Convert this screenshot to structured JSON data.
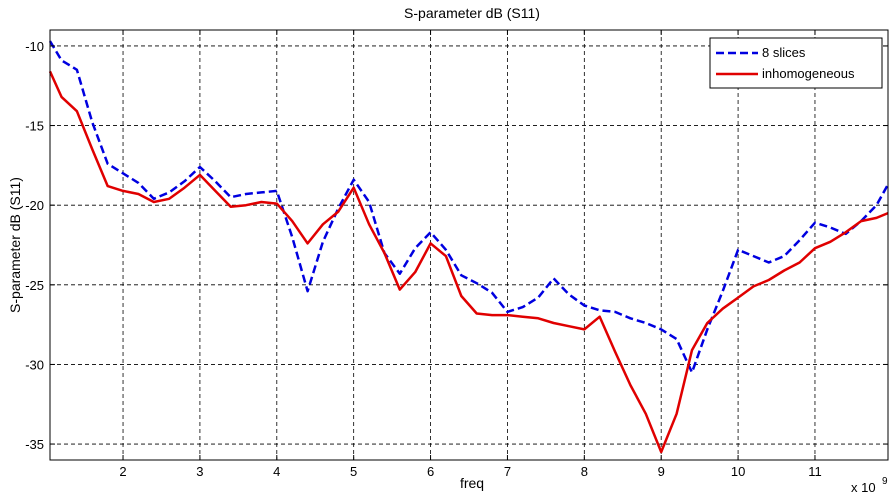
{
  "chart_data": {
    "type": "line",
    "title": "S-parameter dB (S11)",
    "xlabel": "freq",
    "ylabel": "S-parameter dB (S11)",
    "x_multiplier_label": "x 10",
    "x_multiplier_exponent": "9",
    "xlim": [
      1.05,
      11.95
    ],
    "ylim": [
      -36,
      -9
    ],
    "xticks": [
      2,
      3,
      4,
      5,
      6,
      7,
      8,
      9,
      10,
      11
    ],
    "xtick_labels": [
      "2",
      "3",
      "4",
      "5",
      "6",
      "7",
      "8",
      "9",
      "10",
      "11"
    ],
    "yticks": [
      -35,
      -30,
      -25,
      -20,
      -15,
      -10
    ],
    "ytick_labels": [
      "-35",
      "-30",
      "-25",
      "-20",
      "-15",
      "-10"
    ],
    "grid": true,
    "legend_position": "top-right",
    "series": [
      {
        "name": "8 slices",
        "color": "#0000e0",
        "style": "dashed",
        "x": [
          1.05,
          1.2,
          1.4,
          1.6,
          1.8,
          2.0,
          2.2,
          2.4,
          2.6,
          2.8,
          3.0,
          3.2,
          3.4,
          3.6,
          3.8,
          4.0,
          4.2,
          4.4,
          4.6,
          4.8,
          5.0,
          5.2,
          5.4,
          5.6,
          5.8,
          6.0,
          6.2,
          6.4,
          6.6,
          6.8,
          7.0,
          7.2,
          7.4,
          7.6,
          7.8,
          8.0,
          8.2,
          8.4,
          8.6,
          8.8,
          9.0,
          9.2,
          9.4,
          9.6,
          9.8,
          10.0,
          10.2,
          10.4,
          10.6,
          10.8,
          11.0,
          11.2,
          11.4,
          11.6,
          11.8,
          11.95
        ],
        "y": [
          -9.7,
          -10.9,
          -11.5,
          -14.8,
          -17.4,
          -18.0,
          -18.6,
          -19.6,
          -19.2,
          -18.5,
          -17.6,
          -18.5,
          -19.5,
          -19.3,
          -19.2,
          -19.1,
          -22.0,
          -25.4,
          -22.3,
          -20.2,
          -18.4,
          -19.8,
          -23.0,
          -24.3,
          -22.7,
          -21.7,
          -22.8,
          -24.4,
          -24.9,
          -25.5,
          -26.7,
          -26.4,
          -25.8,
          -24.6,
          -25.6,
          -26.3,
          -26.6,
          -26.7,
          -27.1,
          -27.4,
          -27.8,
          -28.4,
          -30.5,
          -27.8,
          -25.4,
          -22.8,
          -23.2,
          -23.6,
          -23.2,
          -22.2,
          -21.1,
          -21.4,
          -21.8,
          -21.0,
          -20.0,
          -18.7
        ]
      },
      {
        "name": "inhomogeneous",
        "color": "#e00000",
        "style": "solid",
        "x": [
          1.05,
          1.2,
          1.4,
          1.6,
          1.8,
          2.0,
          2.2,
          2.4,
          2.6,
          2.8,
          3.0,
          3.2,
          3.4,
          3.6,
          3.8,
          4.0,
          4.2,
          4.4,
          4.6,
          4.8,
          5.0,
          5.2,
          5.4,
          5.6,
          5.8,
          6.0,
          6.2,
          6.4,
          6.6,
          6.8,
          7.0,
          7.2,
          7.4,
          7.6,
          7.8,
          8.0,
          8.2,
          8.4,
          8.6,
          8.8,
          9.0,
          9.2,
          9.4,
          9.6,
          9.8,
          10.0,
          10.2,
          10.4,
          10.6,
          10.8,
          11.0,
          11.2,
          11.4,
          11.6,
          11.8,
          11.95
        ],
        "y": [
          -11.6,
          -13.2,
          -14.1,
          -16.5,
          -18.8,
          -19.1,
          -19.3,
          -19.8,
          -19.6,
          -18.9,
          -18.1,
          -19.1,
          -20.1,
          -20.0,
          -19.8,
          -19.9,
          -21.0,
          -22.4,
          -21.2,
          -20.4,
          -18.9,
          -21.2,
          -23.0,
          -25.3,
          -24.2,
          -22.4,
          -23.2,
          -25.7,
          -26.8,
          -26.9,
          -26.9,
          -27.0,
          -27.1,
          -27.4,
          -27.6,
          -27.8,
          -27.0,
          -29.2,
          -31.3,
          -33.1,
          -35.5,
          -33.1,
          -29.1,
          -27.4,
          -26.5,
          -25.8,
          -25.1,
          -24.7,
          -24.1,
          -23.6,
          -22.7,
          -22.3,
          -21.7,
          -21.0,
          -20.8,
          -20.5
        ]
      }
    ]
  }
}
